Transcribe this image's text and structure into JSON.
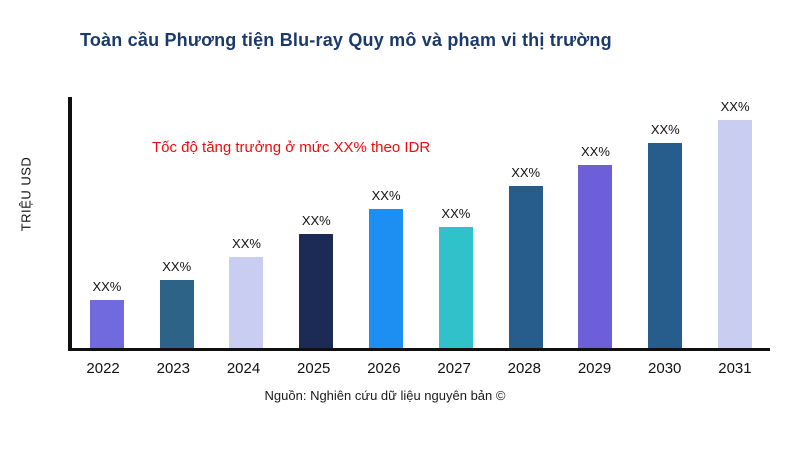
{
  "page": {
    "source_note": "Nguồn: Nghiên cứu dữ liệu nguyên bản ©"
  },
  "chart_data": {
    "type": "bar",
    "title": "Toàn cầu Phương tiện Blu-ray Quy mô và phạm vi thị trường",
    "title_color": "#1b3a6b",
    "xlabel": "",
    "ylabel": "TRIỆU USD",
    "annotation": "Tốc độ tăng trưởng ở mức XX% theo IDR",
    "annotation_color": "#ee0b0b",
    "categories": [
      "2022",
      "2023",
      "2024",
      "2025",
      "2026",
      "2027",
      "2028",
      "2029",
      "2030",
      "2031"
    ],
    "values": [
      21,
      30,
      40,
      50,
      61,
      53,
      71,
      80,
      90,
      100
    ],
    "bar_labels": [
      "XX%",
      "XX%",
      "XX%",
      "XX%",
      "XX%",
      "XX%",
      "XX%",
      "XX%",
      "XX%",
      "XX%"
    ],
    "colors": [
      "#716ade",
      "#2e6388",
      "#c9cdf2",
      "#1b2b56",
      "#1e8ff2",
      "#30c2cb",
      "#275d8d",
      "#6d5fd8",
      "#275d8d",
      "#c9cdf2"
    ],
    "ylim": [
      0,
      110
    ],
    "grid": false,
    "legend": false,
    "axis_color": "#101010"
  }
}
